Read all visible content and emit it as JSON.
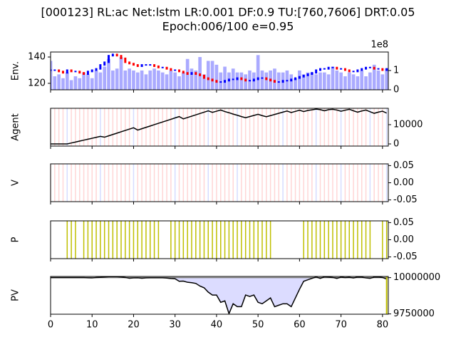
{
  "title": "[000123] RL:ac Net:lstm LR:0.001 DF:0.9 TU:[760,7606] DRT:0.05",
  "subtitle": "Epoch:006/100 e=0.95",
  "x": [
    0,
    1,
    2,
    3,
    4,
    5,
    6,
    7,
    8,
    9,
    10,
    11,
    12,
    13,
    14,
    15,
    16,
    17,
    18,
    19,
    20,
    21,
    22,
    23,
    24,
    25,
    26,
    27,
    28,
    29,
    30,
    31,
    32,
    33,
    34,
    35,
    36,
    37,
    38,
    39,
    40,
    41,
    42,
    43,
    44,
    45,
    46,
    47,
    48,
    49,
    50,
    51,
    52,
    53,
    54,
    55,
    56,
    57,
    58,
    59,
    60,
    61,
    62,
    63,
    64,
    65,
    66,
    67,
    68,
    69,
    70,
    71,
    72,
    73,
    74,
    75,
    76,
    77,
    78,
    79,
    80,
    81
  ],
  "xlim": [
    0,
    81.4
  ],
  "xticks": [
    0,
    10,
    20,
    30,
    40,
    50,
    60,
    70,
    80
  ],
  "actions": [
    1,
    1,
    1,
    1,
    -1,
    1,
    1,
    1,
    1,
    1,
    1,
    1,
    -1,
    1,
    1,
    1,
    1,
    1,
    1,
    1,
    -1,
    1,
    1,
    1,
    1,
    1,
    1,
    1,
    1,
    1,
    -1,
    1,
    1,
    1,
    1,
    1,
    1,
    1,
    -1,
    1,
    1,
    1,
    1,
    1,
    1,
    -1,
    1,
    1,
    1,
    1,
    1,
    1,
    1,
    1,
    1,
    1,
    -1,
    1,
    1,
    1,
    1,
    1,
    1,
    1,
    -1,
    1,
    1,
    1,
    1,
    1,
    -1,
    1,
    1,
    1,
    1,
    1,
    1,
    -1,
    1,
    1,
    1,
    -1
  ],
  "action_colors": {
    "1": "#ffd6d6",
    "-1": "#d6dcff"
  },
  "chart_data": [
    {
      "type": "candlestick",
      "ylabel": "Env.",
      "ylim": [
        115.1,
        143.8
      ],
      "yticks": [
        120,
        140
      ],
      "y2lim": [
        0,
        1.96
      ],
      "y2ticks": [
        0,
        1
      ],
      "y2_offset_label": "1e8",
      "up_color": "#0000ff",
      "down_color": "#ff0000",
      "volume_color": "#aaaaff",
      "close": [
        130,
        130,
        129,
        128,
        130,
        129,
        129,
        128,
        127,
        129,
        130,
        131,
        134,
        136,
        141,
        142,
        141,
        139,
        136,
        135,
        134,
        133,
        134,
        134,
        134,
        133,
        132,
        132,
        131,
        130,
        130,
        129,
        128,
        127,
        128,
        127,
        126,
        124,
        123,
        122,
        121,
        121,
        122,
        123,
        123,
        124,
        123,
        122,
        122,
        123,
        124,
        124,
        123,
        122,
        121,
        121,
        122,
        122,
        123,
        124,
        125,
        126,
        127,
        128,
        130,
        131,
        131,
        132,
        132,
        131,
        131,
        130,
        129,
        129,
        130,
        131,
        132,
        132,
        131,
        131,
        130,
        131
      ],
      "volume": [
        1.5,
        0.7,
        0.8,
        0.6,
        0.9,
        0.5,
        0.7,
        0.6,
        0.9,
        0.8,
        0.6,
        1.0,
        0.9,
        1.2,
        1.6,
        1.0,
        1.1,
        1.7,
        1.0,
        1.1,
        1.0,
        0.9,
        1.0,
        0.8,
        1.0,
        1.1,
        1.0,
        0.9,
        0.8,
        1.0,
        0.9,
        0.7,
        0.9,
        1.6,
        1.1,
        1.0,
        1.7,
        0.8,
        1.5,
        1.5,
        1.3,
        0.9,
        1.2,
        0.9,
        1.1,
        0.9,
        0.9,
        0.8,
        1.0,
        0.9,
        1.8,
        1.0,
        0.9,
        1.0,
        1.1,
        0.9,
        0.9,
        1.0,
        0.8,
        0.6,
        1.0,
        0.8,
        0.9,
        0.9,
        0.8,
        0.9,
        0.9,
        0.8,
        1.2,
        1.0,
        0.9,
        0.7,
        0.9,
        0.8,
        0.7,
        1.0,
        0.7,
        0.9,
        1.3,
        1.0,
        0.8,
        1.1
      ]
    },
    {
      "type": "line",
      "ylabel": "Agent",
      "ylim": [
        -1111,
        18500
      ],
      "yticks": [
        0,
        10000
      ],
      "color": "#000000",
      "show_actions": true,
      "values": [
        0,
        0,
        0,
        0,
        0,
        490,
        980,
        1470,
        1960,
        2450,
        2940,
        3430,
        3920,
        3500,
        4200,
        4900,
        5600,
        6300,
        7000,
        7700,
        8400,
        7200,
        7900,
        8600,
        9300,
        10000,
        10700,
        11400,
        12100,
        12800,
        13500,
        14200,
        13000,
        13700,
        14400,
        15100,
        15800,
        16500,
        17200,
        16400,
        17000,
        17600,
        16800,
        16200,
        15500,
        14900,
        14200,
        13600,
        14200,
        14800,
        15400,
        14700,
        14100,
        14700,
        15300,
        15900,
        16500,
        17100,
        16300,
        16900,
        17500,
        16800,
        17400,
        17700,
        18100,
        17800,
        17200,
        17800,
        18000,
        17600,
        17000,
        17500,
        18000,
        17200,
        16500,
        17100,
        17600,
        16700,
        15900,
        16500,
        17000,
        16000
      ]
    },
    {
      "type": "vlines",
      "ylabel": "V",
      "ylim": [
        -0.055,
        0.055
      ],
      "show_actions": true,
      "yticks": [
        0.05,
        {
          "value": 0,
          "label": "0.00"
        },
        -0.05
      ]
    },
    {
      "type": "vlines",
      "ylabel": "P",
      "ylim": [
        -0.055,
        0.055
      ],
      "color": "#bfbf00",
      "yticks": [
        0.05,
        {
          "value": 0,
          "label": "0.00"
        },
        -0.05
      ],
      "positions": [
        4,
        5,
        6,
        8,
        9,
        10,
        11,
        12,
        13,
        14,
        15,
        16,
        17,
        18,
        19,
        20,
        21,
        22,
        23,
        24,
        25,
        26,
        29,
        30,
        31,
        32,
        33,
        34,
        35,
        36,
        37,
        38,
        39,
        40,
        41,
        42,
        43,
        44,
        45,
        46,
        47,
        48,
        49,
        50,
        51,
        52,
        53,
        61,
        62,
        63,
        64,
        65,
        66,
        67,
        68,
        69,
        70,
        71,
        72,
        73,
        74,
        75,
        76,
        77,
        80,
        81
      ]
    },
    {
      "type": "area_line",
      "ylabel": "PV",
      "ylim": [
        9747973,
        10008108
      ],
      "yticks": [
        10000000,
        9750000
      ],
      "baseline": 10000000,
      "color": "#000000",
      "baseline_color": "#808080",
      "above_color": "#ffdada",
      "below_color": "#dcdcff",
      "marker_x": 81,
      "marker_color": "#bfbf00",
      "values": [
        10000000,
        10000000,
        10000000,
        10000000,
        10000000,
        10000000,
        10000000,
        10000000,
        10000000,
        9999000,
        9998000,
        10001000,
        10002000,
        10004000,
        10006000,
        10006000,
        10006000,
        10004000,
        10001000,
        9996000,
        9998000,
        9999000,
        9996000,
        9998000,
        9999000,
        9999000,
        9999000,
        9999000,
        9997000,
        9994000,
        9992000,
        9975000,
        9976000,
        9968000,
        9965000,
        9960000,
        9942000,
        9930000,
        9900000,
        9880000,
        9880000,
        9830000,
        9840000,
        9752000,
        9820000,
        9800000,
        9800000,
        9880000,
        9870000,
        9880000,
        9830000,
        9820000,
        9840000,
        9860000,
        9800000,
        9810000,
        9820000,
        9820000,
        9800000,
        9860000,
        9920000,
        9975000,
        9985000,
        9995000,
        10004000,
        9995000,
        10005000,
        10003000,
        10001000,
        9995000,
        10003000,
        10000000,
        10002000,
        9998000,
        10004000,
        10003000,
        9998000,
        9995000,
        10003000,
        10004000,
        10001000,
        9990000
      ]
    }
  ]
}
